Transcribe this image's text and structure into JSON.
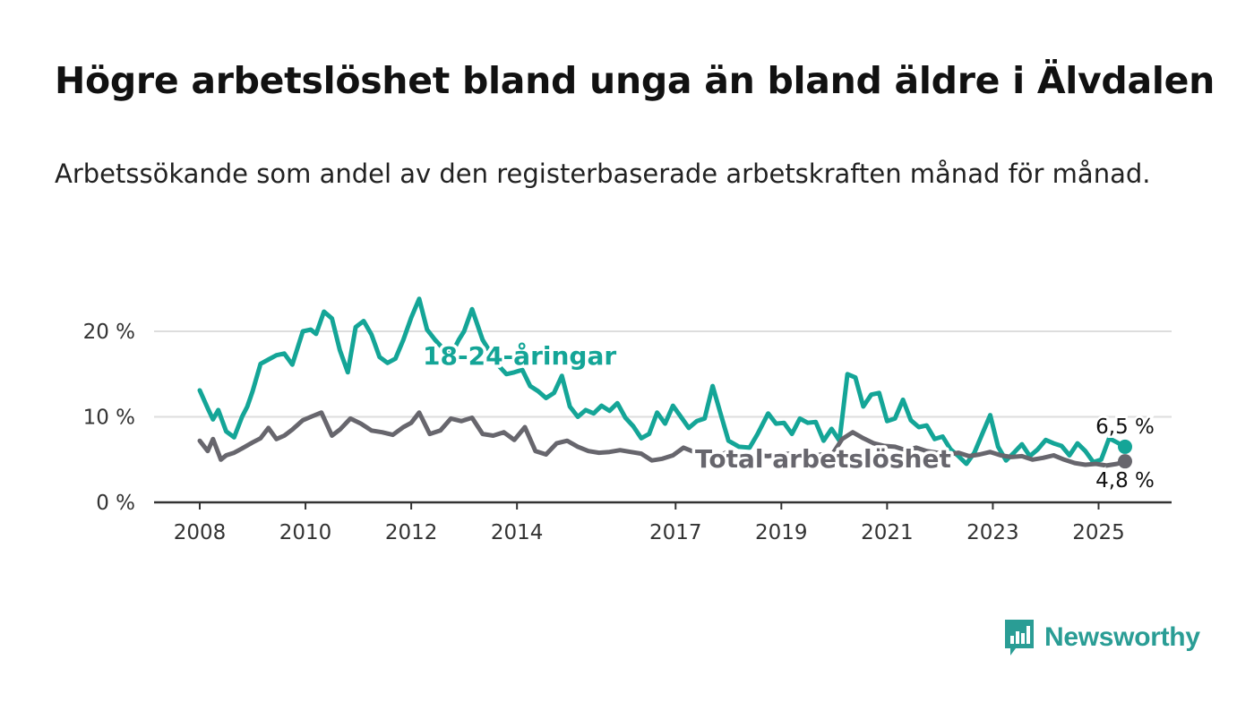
{
  "header": {
    "title": "Högre arbetslöshet bland unga än bland äldre i Älvdalen",
    "subtitle": "Arbetssökande som andel av den registerbaserade arbetskraften månad för månad."
  },
  "brand": {
    "name": "Newsworthy",
    "icon": "bar-chart-speech-bubble-icon",
    "color": "#2a9d95"
  },
  "chart_data": {
    "type": "line",
    "title": "Högre arbetslöshet bland unga än bland äldre i Älvdalen",
    "subtitle": "Arbetssökande som andel av den registerbaserade arbetskraften månad för månad.",
    "xlabel": "",
    "ylabel": "",
    "xlim": [
      2008,
      2025.6
    ],
    "ylim": [
      0,
      20
    ],
    "y_ticks": [
      0,
      10,
      20
    ],
    "y_tick_labels": [
      "0 %",
      "10 %",
      "20 %"
    ],
    "x_ticks": [
      2008,
      2010,
      2012,
      2014,
      2017,
      2019,
      2021,
      2023,
      2025
    ],
    "x_tick_labels": [
      "2008",
      "2010",
      "2012",
      "2014",
      "2017",
      "2019",
      "2021",
      "2023",
      "2025"
    ],
    "grid": "horizontal",
    "series": [
      {
        "name": "18-24-åringar",
        "color": "#14a597",
        "end_label": "6,5 %",
        "x": [
          2008.0,
          2008.15,
          2008.25,
          2008.35,
          2008.5,
          2008.65,
          2008.8,
          2008.9,
          2009.0,
          2009.15,
          2009.3,
          2009.45,
          2009.6,
          2009.75,
          2009.95,
          2010.1,
          2010.2,
          2010.35,
          2010.5,
          2010.65,
          2010.8,
          2010.95,
          2011.1,
          2011.25,
          2011.4,
          2011.55,
          2011.7,
          2011.85,
          2012.0,
          2012.15,
          2012.3,
          2012.45,
          2012.6,
          2012.75,
          2012.9,
          2013.0,
          2013.15,
          2013.35,
          2013.5,
          2013.65,
          2013.8,
          2013.95,
          2014.1,
          2014.25,
          2014.4,
          2014.55,
          2014.7,
          2014.85,
          2015.0,
          2015.15,
          2015.3,
          2015.45,
          2015.6,
          2015.75,
          2015.9,
          2016.05,
          2016.2,
          2016.35,
          2016.5,
          2016.65,
          2016.8,
          2016.95,
          2017.1,
          2017.25,
          2017.4,
          2017.55,
          2017.7,
          2017.85,
          2018.0,
          2018.2,
          2018.4,
          2018.55,
          2018.75,
          2018.9,
          2019.05,
          2019.2,
          2019.35,
          2019.5,
          2019.65,
          2019.8,
          2019.95,
          2020.1,
          2020.25,
          2020.4,
          2020.55,
          2020.7,
          2020.85,
          2021.0,
          2021.15,
          2021.3,
          2021.45,
          2021.6,
          2021.75,
          2021.9,
          2022.05,
          2022.2,
          2022.35,
          2022.5,
          2022.65,
          2022.8,
          2022.95,
          2023.1,
          2023.25,
          2023.4,
          2023.55,
          2023.7,
          2023.85,
          2024.0,
          2024.15,
          2024.3,
          2024.45,
          2024.6,
          2024.75,
          2024.9,
          2025.05,
          2025.2,
          2025.35,
          2025.5
        ],
        "values": [
          13.1,
          11.0,
          9.7,
          10.8,
          8.3,
          7.6,
          10.0,
          11.2,
          13.0,
          16.2,
          16.7,
          17.2,
          17.4,
          16.1,
          20.0,
          20.2,
          19.7,
          22.3,
          21.5,
          17.8,
          15.2,
          20.5,
          21.2,
          19.6,
          17.0,
          16.3,
          16.8,
          19.0,
          21.6,
          23.8,
          20.2,
          19.0,
          18.0,
          17.2,
          19.0,
          20.0,
          22.6,
          19.0,
          17.5,
          16.0,
          15.0,
          15.2,
          15.5,
          13.6,
          13.0,
          12.2,
          12.8,
          14.8,
          11.2,
          10.0,
          10.8,
          10.4,
          11.3,
          10.7,
          11.6,
          9.9,
          8.9,
          7.5,
          8.0,
          10.5,
          9.2,
          11.3,
          10.0,
          8.7,
          9.5,
          9.8,
          13.6,
          10.4,
          7.2,
          6.5,
          6.4,
          8.0,
          10.4,
          9.2,
          9.3,
          8.0,
          9.8,
          9.3,
          9.4,
          7.2,
          8.6,
          7.2,
          15.0,
          14.6,
          11.2,
          12.6,
          12.8,
          9.5,
          9.8,
          12.0,
          9.6,
          8.8,
          9.0,
          7.4,
          7.7,
          6.2,
          5.4,
          4.5,
          5.8,
          8.0,
          10.2,
          6.5,
          4.9,
          5.8,
          6.8,
          5.4,
          6.2,
          7.3,
          6.9,
          6.6,
          5.5,
          6.9,
          6.0,
          4.7,
          5.0,
          7.5,
          7.0,
          6.5
        ]
      },
      {
        "name": "Total arbetslöshet",
        "color": "#67666d",
        "end_label": "4,8 %",
        "x": [
          2008.0,
          2008.15,
          2008.25,
          2008.4,
          2008.5,
          2008.65,
          2008.8,
          2009.0,
          2009.15,
          2009.3,
          2009.45,
          2009.6,
          2009.75,
          2009.95,
          2010.1,
          2010.3,
          2010.5,
          2010.65,
          2010.85,
          2011.05,
          2011.25,
          2011.45,
          2011.65,
          2011.85,
          2012.0,
          2012.15,
          2012.35,
          2012.55,
          2012.75,
          2012.95,
          2013.15,
          2013.35,
          2013.55,
          2013.75,
          2013.95,
          2014.15,
          2014.35,
          2014.55,
          2014.75,
          2014.95,
          2015.15,
          2015.35,
          2015.55,
          2015.75,
          2015.95,
          2016.15,
          2016.35,
          2016.55,
          2016.75,
          2016.95,
          2017.15,
          2017.35,
          2017.55,
          2017.75,
          2017.95,
          2018.15,
          2018.35,
          2018.55,
          2018.75,
          2018.95,
          2019.15,
          2019.35,
          2019.55,
          2019.75,
          2019.95,
          2020.15,
          2020.35,
          2020.55,
          2020.75,
          2020.95,
          2021.15,
          2021.35,
          2021.55,
          2021.75,
          2021.95,
          2022.15,
          2022.35,
          2022.55,
          2022.75,
          2022.95,
          2023.15,
          2023.35,
          2023.55,
          2023.75,
          2023.95,
          2024.15,
          2024.35,
          2024.55,
          2024.75,
          2024.95,
          2025.15,
          2025.35,
          2025.5
        ],
        "values": [
          7.2,
          6.0,
          7.4,
          5.0,
          5.5,
          5.8,
          6.3,
          7.0,
          7.5,
          8.7,
          7.4,
          7.8,
          8.5,
          9.6,
          10.0,
          10.5,
          7.8,
          8.5,
          9.8,
          9.2,
          8.4,
          8.2,
          7.9,
          8.8,
          9.3,
          10.5,
          8.0,
          8.4,
          9.8,
          9.5,
          9.9,
          8.0,
          7.8,
          8.2,
          7.3,
          8.8,
          6.0,
          5.6,
          6.9,
          7.2,
          6.5,
          6.0,
          5.8,
          5.9,
          6.1,
          5.9,
          5.7,
          4.9,
          5.1,
          5.5,
          6.4,
          5.9,
          5.4,
          5.3,
          5.8,
          5.6,
          5.4,
          5.5,
          5.4,
          5.6,
          5.7,
          5.5,
          5.3,
          5.6,
          5.5,
          7.4,
          8.2,
          7.5,
          6.9,
          6.6,
          6.5,
          6.1,
          6.4,
          6.0,
          5.8,
          5.6,
          5.8,
          5.4,
          5.6,
          5.9,
          5.5,
          5.3,
          5.4,
          5.0,
          5.2,
          5.5,
          5.0,
          4.6,
          4.4,
          4.5,
          4.3,
          4.5,
          4.8
        ]
      }
    ],
    "annotations": [
      {
        "series": "18-24-åringar",
        "text": "18-24-åringar",
        "x": 2012.3,
        "y": 17.5
      },
      {
        "series": "Total arbetslöshet",
        "text": "Total arbetslöshet",
        "x": 2017.4,
        "y": 5.2
      }
    ]
  }
}
